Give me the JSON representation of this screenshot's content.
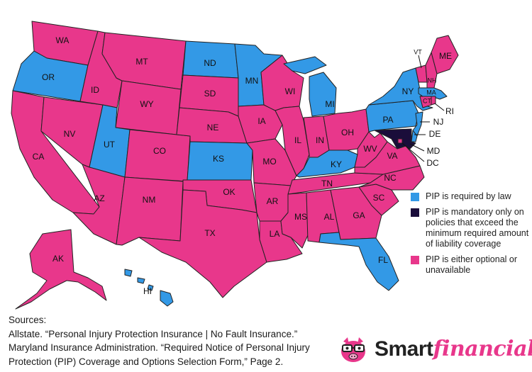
{
  "colors": {
    "pip_required": "#3399e6",
    "pip_mandatory_excess": "#1a0d3a",
    "pip_optional": "#e8378b",
    "water": "#ffffff",
    "border": "#222222"
  },
  "legend": [
    {
      "key": "pip_required",
      "label": "PIP is required by law"
    },
    {
      "key": "pip_mandatory_excess",
      "label": "PIP is mandatory only on policies that exceed the minimum required amount of liability coverage"
    },
    {
      "key": "pip_optional",
      "label": "PIP is either optional or unavailable"
    }
  ],
  "states": {
    "WA": "pip_optional",
    "OR": "pip_required",
    "CA": "pip_optional",
    "NV": "pip_optional",
    "ID": "pip_optional",
    "MT": "pip_optional",
    "WY": "pip_optional",
    "UT": "pip_required",
    "AZ": "pip_optional",
    "NM": "pip_optional",
    "CO": "pip_optional",
    "ND": "pip_required",
    "SD": "pip_optional",
    "NE": "pip_optional",
    "KS": "pip_required",
    "OK": "pip_optional",
    "TX": "pip_optional",
    "MN": "pip_required",
    "IA": "pip_optional",
    "MO": "pip_optional",
    "AR": "pip_optional",
    "LA": "pip_optional",
    "WI": "pip_optional",
    "IL": "pip_optional",
    "MI": "pip_required",
    "IN": "pip_optional",
    "OH": "pip_optional",
    "KY": "pip_required",
    "TN": "pip_optional",
    "MS": "pip_optional",
    "AL": "pip_optional",
    "GA": "pip_optional",
    "FL": "pip_required",
    "SC": "pip_optional",
    "NC": "pip_optional",
    "VA": "pip_optional",
    "WV": "pip_optional",
    "PA": "pip_required",
    "NY": "pip_required",
    "NJ": "pip_required",
    "DE": "pip_required",
    "MD": "pip_mandatory_excess",
    "DC": "pip_optional",
    "CT": "pip_optional",
    "RI": "pip_optional",
    "MA": "pip_required",
    "VT": "pip_optional",
    "NH": "pip_optional",
    "ME": "pip_optional",
    "AK": "pip_optional",
    "HI": "pip_required"
  },
  "sources": {
    "heading": "Sources:",
    "lines": [
      "Allstate. “Personal Injury Protection Insurance | No Fault Insurance.”",
      "Maryland Insurance Administration. “Required Notice of Personal Injury",
      "Protection (PIP) Coverage and Options Selection Form,” Page 2."
    ]
  },
  "brand": {
    "part1": "Smart",
    "part2": "financial"
  }
}
